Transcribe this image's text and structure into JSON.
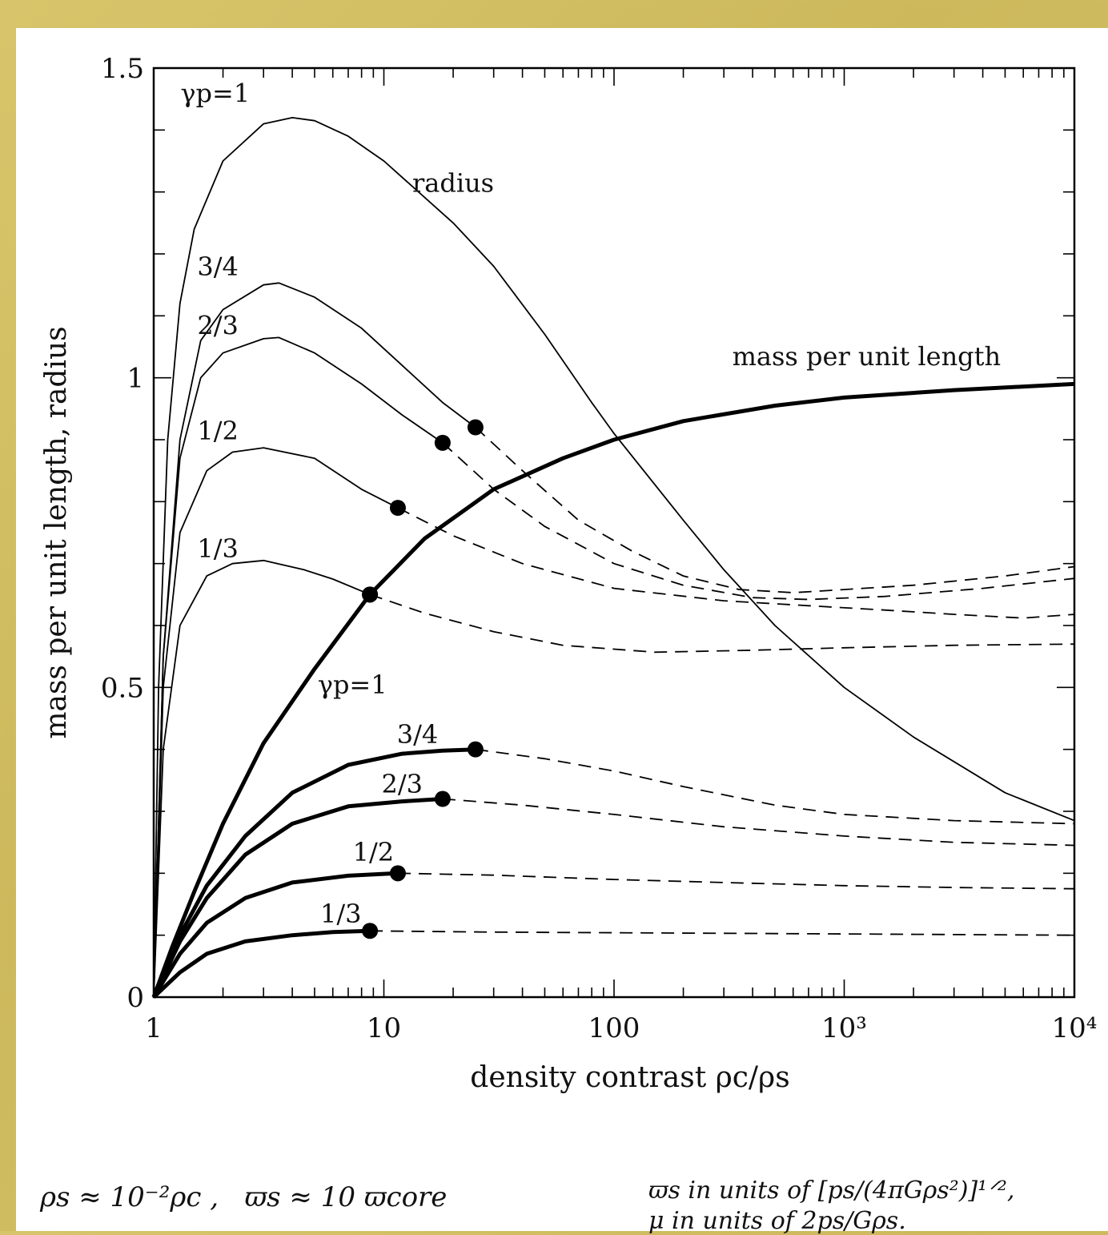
{
  "chart_data": {
    "type": "line",
    "xscale": "log",
    "xlim": [
      1,
      10000
    ],
    "ylim": [
      0,
      1.5
    ],
    "xlabel": "density contrast ρc/ρs",
    "ylabel": "mass per unit length, radius",
    "x_tick_labels": [
      {
        "x": 1,
        "text": "1"
      },
      {
        "x": 10,
        "text": "10"
      },
      {
        "x": 100,
        "text": "100"
      },
      {
        "x": 1000,
        "text": "10³"
      },
      {
        "x": 10000,
        "text": "10⁴"
      }
    ],
    "y_tick_labels": [
      {
        "y": 0,
        "text": "0"
      },
      {
        "y": 0.5,
        "text": "0.5"
      },
      {
        "y": 1,
        "text": "1"
      },
      {
        "y": 1.5,
        "text": "1.5"
      }
    ],
    "annotations": [
      {
        "text": "radius",
        "x": 20,
        "y": 1.3
      },
      {
        "text": "mass per unit length",
        "x": 1250,
        "y": 1.02
      }
    ],
    "series": [
      {
        "name": "radius γp=1",
        "label": "γp=1",
        "group": "radius",
        "style": "thin-solid",
        "points": [
          [
            1,
            0
          ],
          [
            1.05,
            0.5
          ],
          [
            1.15,
            0.9
          ],
          [
            1.3,
            1.12
          ],
          [
            1.5,
            1.24
          ],
          [
            2,
            1.35
          ],
          [
            3,
            1.41
          ],
          [
            4,
            1.42
          ],
          [
            5,
            1.415
          ],
          [
            7,
            1.39
          ],
          [
            10,
            1.35
          ],
          [
            20,
            1.25
          ],
          [
            30,
            1.18
          ],
          [
            50,
            1.07
          ],
          [
            80,
            0.96
          ],
          [
            100,
            0.91
          ],
          [
            200,
            0.77
          ],
          [
            300,
            0.69
          ],
          [
            500,
            0.6
          ],
          [
            1000,
            0.5
          ],
          [
            2000,
            0.42
          ],
          [
            5000,
            0.33
          ],
          [
            10000,
            0.285
          ]
        ],
        "solid_until": 10000
      },
      {
        "name": "radius γp=3/4",
        "label": "3/4",
        "group": "radius",
        "style": "thin-solid",
        "points": [
          [
            1,
            0
          ],
          [
            1.1,
            0.55
          ],
          [
            1.3,
            0.9
          ],
          [
            1.6,
            1.06
          ],
          [
            2,
            1.11
          ],
          [
            3,
            1.15
          ],
          [
            3.5,
            1.153
          ],
          [
            5,
            1.13
          ],
          [
            8,
            1.08
          ],
          [
            12,
            1.02
          ],
          [
            18,
            0.96
          ],
          [
            25,
            0.92
          ],
          [
            40,
            0.85
          ],
          [
            70,
            0.77
          ],
          [
            120,
            0.72
          ],
          [
            200,
            0.68
          ],
          [
            350,
            0.658
          ],
          [
            600,
            0.653
          ],
          [
            1000,
            0.658
          ],
          [
            2000,
            0.665
          ],
          [
            5000,
            0.68
          ],
          [
            10000,
            0.695
          ]
        ],
        "solid_until": 25,
        "marker": [
          25,
          0.92
        ]
      },
      {
        "name": "radius γp=2/3",
        "label": "2/3",
        "group": "radius",
        "style": "thin-solid",
        "points": [
          [
            1,
            0
          ],
          [
            1.1,
            0.55
          ],
          [
            1.3,
            0.87
          ],
          [
            1.6,
            1.0
          ],
          [
            2,
            1.04
          ],
          [
            3,
            1.063
          ],
          [
            3.5,
            1.065
          ],
          [
            5,
            1.04
          ],
          [
            8,
            0.99
          ],
          [
            12,
            0.94
          ],
          [
            18,
            0.895
          ],
          [
            30,
            0.82
          ],
          [
            50,
            0.76
          ],
          [
            100,
            0.7
          ],
          [
            200,
            0.665
          ],
          [
            400,
            0.645
          ],
          [
            700,
            0.642
          ],
          [
            1500,
            0.647
          ],
          [
            4000,
            0.66
          ],
          [
            10000,
            0.676
          ]
        ],
        "solid_until": 18,
        "marker": [
          18,
          0.895
        ]
      },
      {
        "name": "radius γp=1/2",
        "label": "1/2",
        "group": "radius",
        "style": "thin-solid",
        "points": [
          [
            1,
            0
          ],
          [
            1.1,
            0.5
          ],
          [
            1.3,
            0.75
          ],
          [
            1.7,
            0.85
          ],
          [
            2.2,
            0.88
          ],
          [
            3,
            0.887
          ],
          [
            5,
            0.87
          ],
          [
            8,
            0.82
          ],
          [
            11.5,
            0.79
          ],
          [
            20,
            0.745
          ],
          [
            40,
            0.7
          ],
          [
            100,
            0.66
          ],
          [
            300,
            0.64
          ],
          [
            700,
            0.632
          ],
          [
            1500,
            0.625
          ],
          [
            3000,
            0.618
          ],
          [
            6000,
            0.612
          ],
          [
            10000,
            0.618
          ]
        ],
        "solid_until": 11.5,
        "marker": [
          11.5,
          0.79
        ]
      },
      {
        "name": "radius γp=1/3",
        "label": "1/3",
        "group": "radius",
        "style": "thin-solid",
        "points": [
          [
            1,
            0
          ],
          [
            1.1,
            0.4
          ],
          [
            1.3,
            0.6
          ],
          [
            1.7,
            0.68
          ],
          [
            2.2,
            0.7
          ],
          [
            3,
            0.705
          ],
          [
            4.5,
            0.69
          ],
          [
            6,
            0.675
          ],
          [
            8.7,
            0.65
          ],
          [
            15,
            0.62
          ],
          [
            30,
            0.59
          ],
          [
            60,
            0.568
          ],
          [
            150,
            0.557
          ],
          [
            400,
            0.56
          ],
          [
            1000,
            0.564
          ],
          [
            3000,
            0.568
          ],
          [
            10000,
            0.57
          ]
        ],
        "solid_until": 8.7,
        "marker": [
          8.7,
          0.65
        ]
      },
      {
        "name": "mass γp=1",
        "label": "γp=1",
        "group": "mass",
        "style": "thick-solid",
        "points": [
          [
            1,
            0
          ],
          [
            1.2,
            0.08
          ],
          [
            1.5,
            0.17
          ],
          [
            2,
            0.28
          ],
          [
            3,
            0.41
          ],
          [
            5,
            0.53
          ],
          [
            8.7,
            0.65
          ],
          [
            15,
            0.74
          ],
          [
            30,
            0.82
          ],
          [
            60,
            0.87
          ],
          [
            100,
            0.9
          ],
          [
            200,
            0.93
          ],
          [
            500,
            0.955
          ],
          [
            1000,
            0.968
          ],
          [
            3000,
            0.98
          ],
          [
            10000,
            0.99
          ]
        ],
        "solid_until": 10000,
        "marker": [
          8.7,
          0.65
        ]
      },
      {
        "name": "mass γp=3/4",
        "label": "3/4",
        "group": "mass",
        "style": "thick-solid",
        "points": [
          [
            1,
            0
          ],
          [
            1.3,
            0.1
          ],
          [
            1.7,
            0.18
          ],
          [
            2.5,
            0.26
          ],
          [
            4,
            0.33
          ],
          [
            7,
            0.375
          ],
          [
            12,
            0.393
          ],
          [
            18,
            0.398
          ],
          [
            25,
            0.4
          ],
          [
            50,
            0.385
          ],
          [
            100,
            0.365
          ],
          [
            200,
            0.34
          ],
          [
            500,
            0.31
          ],
          [
            1000,
            0.295
          ],
          [
            3000,
            0.285
          ],
          [
            10000,
            0.28
          ]
        ],
        "solid_until": 25,
        "marker": [
          25,
          0.4
        ]
      },
      {
        "name": "mass γp=2/3",
        "label": "2/3",
        "group": "mass",
        "style": "thick-solid",
        "points": [
          [
            1,
            0
          ],
          [
            1.3,
            0.09
          ],
          [
            1.7,
            0.16
          ],
          [
            2.5,
            0.23
          ],
          [
            4,
            0.28
          ],
          [
            7,
            0.308
          ],
          [
            12,
            0.316
          ],
          [
            18,
            0.32
          ],
          [
            40,
            0.31
          ],
          [
            100,
            0.295
          ],
          [
            300,
            0.275
          ],
          [
            1000,
            0.26
          ],
          [
            3000,
            0.25
          ],
          [
            10000,
            0.245
          ]
        ],
        "solid_until": 18,
        "marker": [
          18,
          0.32
        ]
      },
      {
        "name": "mass γp=1/2",
        "label": "1/2",
        "group": "mass",
        "style": "thick-solid",
        "points": [
          [
            1,
            0
          ],
          [
            1.3,
            0.07
          ],
          [
            1.7,
            0.12
          ],
          [
            2.5,
            0.16
          ],
          [
            4,
            0.185
          ],
          [
            7,
            0.196
          ],
          [
            11.5,
            0.2
          ],
          [
            30,
            0.197
          ],
          [
            100,
            0.19
          ],
          [
            300,
            0.185
          ],
          [
            1000,
            0.18
          ],
          [
            3000,
            0.177
          ],
          [
            10000,
            0.175
          ]
        ],
        "solid_until": 11.5,
        "marker": [
          11.5,
          0.2
        ]
      },
      {
        "name": "mass γp=1/3",
        "label": "1/3",
        "group": "mass",
        "style": "thick-solid",
        "points": [
          [
            1,
            0
          ],
          [
            1.3,
            0.04
          ],
          [
            1.7,
            0.07
          ],
          [
            2.5,
            0.09
          ],
          [
            4,
            0.1
          ],
          [
            6,
            0.105
          ],
          [
            8.7,
            0.107
          ],
          [
            30,
            0.105
          ],
          [
            100,
            0.104
          ],
          [
            1000,
            0.102
          ],
          [
            10000,
            0.1
          ]
        ],
        "solid_until": 8.7,
        "marker": [
          8.7,
          0.107
        ]
      }
    ],
    "curve_labels": [
      {
        "series": 0,
        "x": 1.85,
        "y": 1.445
      },
      {
        "series": 1,
        "x": 1.9,
        "y": 1.165
      },
      {
        "series": 2,
        "x": 1.9,
        "y": 1.07
      },
      {
        "series": 3,
        "x": 1.9,
        "y": 0.9
      },
      {
        "series": 4,
        "x": 1.9,
        "y": 0.71
      },
      {
        "series": 5,
        "x": 7.3,
        "y": 0.49
      },
      {
        "series": 6,
        "x": 14,
        "y": 0.41
      },
      {
        "series": 7,
        "x": 12,
        "y": 0.33
      },
      {
        "series": 8,
        "x": 9,
        "y": 0.22
      },
      {
        "series": 9,
        "x": 6.5,
        "y": 0.12
      }
    ]
  },
  "footnotes": {
    "left": "ρs ≈ 10⁻²ρc ,   ϖs ≈ 10 ϖcore",
    "right_line1": "ϖs in units of [ps/(4πGρs²)]¹ᐟ²,",
    "right_line2": "μ in units of 2ps/Gρs."
  }
}
